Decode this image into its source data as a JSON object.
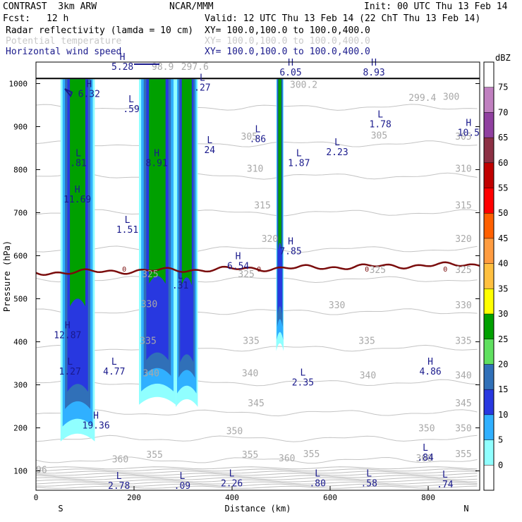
{
  "header": {
    "model": "CONTRAST  3km ARW",
    "center": "NCAR/MMM",
    "init": "Init: 00 UTC Thu 13 Feb 14",
    "fcst_label": "Fcst:",
    "fcst_value": "12 h",
    "valid": "Valid: 12 UTC Thu 13 Feb 14 (22 ChT Thu 13 Feb 14)",
    "fields": [
      {
        "name": "Radar reflectivity (lamda = 10 cm)",
        "xy": "XY= 100.0,100.0 to 100.0,400.0",
        "color": "#000000"
      },
      {
        "name": "Potential temperature",
        "xy": "XY= 100.0,100.0 to 100.0,400.0",
        "color": "#c8c8c8"
      },
      {
        "name": "Horizontal wind speed",
        "xy": "XY= 100.0,100.0 to 100.0,400.0",
        "color": "#1a1a8c"
      }
    ]
  },
  "chart_data": {
    "type": "heatmap",
    "xlabel": "Distance (km)",
    "ylabel": "Pressure (hPa)",
    "xlim": [
      0,
      905
    ],
    "ylim": [
      1050,
      55
    ],
    "xticks": [
      0,
      200,
      400,
      600,
      800
    ],
    "yticks": [
      100,
      200,
      300,
      400,
      500,
      600,
      700,
      800,
      900,
      1000
    ],
    "x_end_labels": {
      "left": "S",
      "right": "N"
    },
    "colorbar": {
      "unit": "dBZ",
      "labels": [
        "75",
        "70",
        "65",
        "60",
        "55",
        "50",
        "45",
        "40",
        "35",
        "30",
        "25",
        "20",
        "15",
        "10",
        "5",
        "0"
      ],
      "colors": [
        "#ffffff",
        "#c080c0",
        "#9040a0",
        "#8c3044",
        "#c00000",
        "#ff0000",
        "#ff6000",
        "#ff9c40",
        "#ffc040",
        "#ffff00",
        "#00a000",
        "#60e060",
        "#3070b8",
        "#2838e0",
        "#30b0ff",
        "#90ffff",
        "#ffffff"
      ]
    },
    "reflectivity_cells": [
      {
        "x": [
          50,
          120
        ],
        "p_top": 185,
        "p_bottom": 1010
      },
      {
        "x": [
          210,
          285
        ],
        "p_top": 270,
        "p_bottom": 1010
      },
      {
        "x": [
          285,
          330
        ],
        "p_top": 265,
        "p_bottom": 1010
      },
      {
        "x": [
          490,
          505
        ],
        "p_top": 395,
        "p_bottom": 1010
      }
    ],
    "theta_contours": [
      {
        "value": "355",
        "p": 125
      },
      {
        "value": "350",
        "p": 175
      },
      {
        "value": "345",
        "p": 235
      },
      {
        "value": "340",
        "p": 305
      },
      {
        "value": "335",
        "p": 385
      },
      {
        "value": "330",
        "p": 470
      },
      {
        "value": "325",
        "p": 545
      },
      {
        "value": "320",
        "p": 615
      },
      {
        "value": "315",
        "p": 700
      },
      {
        "value": "310",
        "p": 785
      },
      {
        "value": "305",
        "p": 860
      },
      {
        "value": "300",
        "p": 945
      }
    ],
    "theta_labels": [
      {
        "text": "360",
        "x": 155,
        "p": 120
      },
      {
        "text": "355",
        "x": 225,
        "p": 130
      },
      {
        "text": "355",
        "x": 420,
        "p": 130
      },
      {
        "text": "360",
        "x": 495,
        "p": 122
      },
      {
        "text": "355",
        "x": 545,
        "p": 132
      },
      {
        "text": "360",
        "x": 775,
        "p": 122
      },
      {
        "text": "355",
        "x": 855,
        "p": 132
      },
      {
        "text": "350",
        "x": 388,
        "p": 185
      },
      {
        "text": "350",
        "x": 780,
        "p": 192
      },
      {
        "text": "350",
        "x": 855,
        "p": 192
      },
      {
        "text": "345",
        "x": 432,
        "p": 250
      },
      {
        "text": "345",
        "x": 855,
        "p": 250
      },
      {
        "text": "340",
        "x": 218,
        "p": 320
      },
      {
        "text": "340",
        "x": 420,
        "p": 320
      },
      {
        "text": "340",
        "x": 660,
        "p": 315
      },
      {
        "text": "340",
        "x": 855,
        "p": 315
      },
      {
        "text": "335",
        "x": 212,
        "p": 395
      },
      {
        "text": "335",
        "x": 422,
        "p": 395
      },
      {
        "text": "335",
        "x": 658,
        "p": 395
      },
      {
        "text": "335",
        "x": 855,
        "p": 395
      },
      {
        "text": "330",
        "x": 214,
        "p": 480
      },
      {
        "text": "330",
        "x": 597,
        "p": 478
      },
      {
        "text": "330",
        "x": 855,
        "p": 478
      },
      {
        "text": "325",
        "x": 216,
        "p": 550
      },
      {
        "text": "325",
        "x": 412,
        "p": 550
      },
      {
        "text": "325",
        "x": 680,
        "p": 560
      },
      {
        "text": "325",
        "x": 855,
        "p": 560
      },
      {
        "text": "320",
        "x": 460,
        "p": 632
      },
      {
        "text": "320",
        "x": 855,
        "p": 632
      },
      {
        "text": "315",
        "x": 445,
        "p": 710
      },
      {
        "text": "315",
        "x": 855,
        "p": 710
      },
      {
        "text": "310",
        "x": 430,
        "p": 795
      },
      {
        "text": "310",
        "x": 855,
        "p": 795
      },
      {
        "text": "305",
        "x": 418,
        "p": 870
      },
      {
        "text": "305",
        "x": 855,
        "p": 870
      },
      {
        "text": "305",
        "x": 683,
        "p": 872
      },
      {
        "text": "300.2",
        "x": 518,
        "p": 990
      },
      {
        "text": "299.4",
        "x": 760,
        "p": 960
      },
      {
        "text": "300",
        "x": 830,
        "p": 962
      },
      {
        "text": "297.6",
        "x": 296,
        "p": 1032
      },
      {
        "text": "98.9",
        "x": 236,
        "p": 1032
      },
      {
        "text": "96",
        "x": 0,
        "p": 95
      }
    ],
    "freezing_level": {
      "label": "0",
      "p_mean": 570,
      "label_x": [
        180,
        455,
        675,
        835
      ]
    },
    "wind_extrema": [
      {
        "type": "L",
        "value": "2.78",
        "x": 155,
        "p": 75
      },
      {
        "type": "L",
        "value": ".09",
        "x": 284,
        "p": 75
      },
      {
        "type": "L",
        "value": "2.26",
        "x": 385,
        "p": 80
      },
      {
        "type": "L",
        "value": ".80",
        "x": 560,
        "p": 80
      },
      {
        "type": "L",
        "value": ".58",
        "x": 665,
        "p": 80
      },
      {
        "type": "L",
        "value": ".74",
        "x": 820,
        "p": 78
      },
      {
        "type": "L",
        "value": ".84",
        "x": 780,
        "p": 140
      },
      {
        "type": "H",
        "value": "19.36",
        "x": 108,
        "p": 215
      },
      {
        "type": "L",
        "value": "1.27",
        "x": 55,
        "p": 340
      },
      {
        "type": "L",
        "value": "4.77",
        "x": 145,
        "p": 340
      },
      {
        "type": "L",
        "value": "2.35",
        "x": 530,
        "p": 315
      },
      {
        "type": "H",
        "value": "4.86",
        "x": 790,
        "p": 340
      },
      {
        "type": "H",
        "value": "12.87",
        "x": 50,
        "p": 425
      },
      {
        "type": "L",
        "value": ".31",
        "x": 280,
        "p": 540
      },
      {
        "type": "H",
        "value": "6.54",
        "x": 398,
        "p": 585
      },
      {
        "type": "H",
        "value": "7.85",
        "x": 505,
        "p": 620
      },
      {
        "type": "L",
        "value": "1.51",
        "x": 172,
        "p": 670
      },
      {
        "type": "H",
        "value": "11.69",
        "x": 70,
        "p": 740
      },
      {
        "type": "L",
        "value": ".81",
        "x": 72,
        "p": 825
      },
      {
        "type": "H",
        "value": "8.91",
        "x": 232,
        "p": 825
      },
      {
        "type": "L",
        "value": "1.87",
        "x": 522,
        "p": 825
      },
      {
        "type": "L",
        "value": "24",
        "x": 340,
        "p": 855
      },
      {
        "type": "L",
        "value": "2.23",
        "x": 600,
        "p": 850
      },
      {
        "type": "L",
        "value": ".86",
        "x": 438,
        "p": 880
      },
      {
        "type": "L",
        "value": "1.78",
        "x": 688,
        "p": 915
      },
      {
        "type": "H",
        "value": "10.5",
        "x": 868,
        "p": 895
      },
      {
        "type": "L",
        "value": ".59",
        "x": 180,
        "p": 950
      },
      {
        "type": "H",
        "value": "6.32",
        "x": 94,
        "p": 985
      },
      {
        "type": "L",
        "value": ".27",
        "x": 325,
        "p": 1000
      },
      {
        "type": "H",
        "value": "5.28",
        "x": 162,
        "p": 1048
      },
      {
        "type": "H",
        "value": "6.05",
        "x": 505,
        "p": 1035
      },
      {
        "type": "H",
        "value": "8.93",
        "x": 675,
        "p": 1035
      }
    ]
  }
}
